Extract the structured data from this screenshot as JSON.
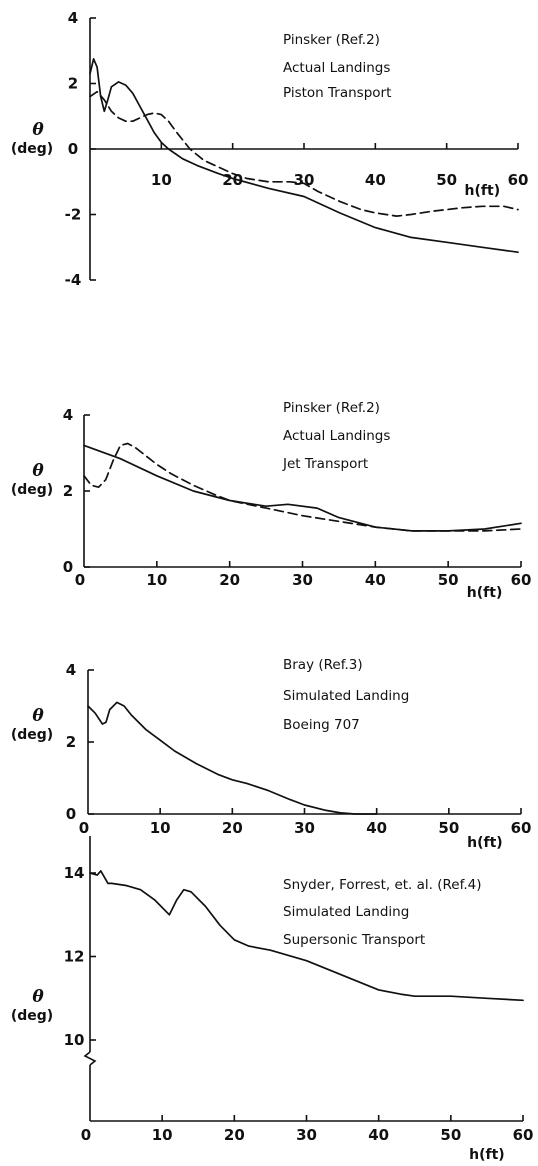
{
  "chart_data": [
    {
      "type": "line",
      "xlabel": "h(ft)",
      "ylabel": "θ",
      "ylabel_unit": "(deg)",
      "xlim": [
        0,
        60
      ],
      "ylim": [
        -4,
        4
      ],
      "x_ticks": [
        "10",
        "20",
        "30",
        "40",
        "50",
        "60"
      ],
      "y_ticks": [
        {
          "value": 4,
          "label": "4"
        },
        {
          "value": 2,
          "label": "2"
        },
        {
          "value": 0,
          "label": "0"
        },
        {
          "value": -2,
          "label": "-2"
        },
        {
          "value": -4,
          "label": "-4"
        }
      ],
      "annotations": [
        "Pinsker (Ref.2)",
        "Actual Landings",
        "Piston Transport"
      ],
      "series": [
        {
          "style": "solid",
          "x": [
            0,
            0.5,
            1,
            1.5,
            2,
            2.5,
            3,
            4,
            5,
            6,
            7,
            8,
            9,
            10,
            11,
            13,
            15,
            18,
            20,
            25,
            30,
            35,
            40,
            45,
            50,
            55,
            60
          ],
          "y": [
            2.3,
            2.75,
            2.5,
            1.6,
            1.15,
            1.5,
            1.9,
            2.05,
            1.95,
            1.7,
            1.3,
            0.9,
            0.5,
            0.2,
            0.0,
            -0.3,
            -0.5,
            -0.75,
            -0.9,
            -1.2,
            -1.45,
            -1.95,
            -2.4,
            -2.7,
            -2.85,
            -3.0,
            -3.15
          ]
        },
        {
          "style": "dashed",
          "x": [
            0,
            1,
            2,
            3,
            4,
            5,
            6,
            7,
            8,
            9,
            10,
            11,
            12,
            14,
            16,
            18,
            20,
            22,
            25,
            28,
            30,
            32,
            35,
            38,
            40,
            43,
            45,
            48,
            50,
            52,
            55,
            58,
            60
          ],
          "y": [
            1.6,
            1.75,
            1.5,
            1.15,
            0.95,
            0.85,
            0.85,
            0.95,
            1.05,
            1.1,
            1.05,
            0.85,
            0.55,
            0.0,
            -0.35,
            -0.55,
            -0.75,
            -0.9,
            -1.0,
            -1.0,
            -1.05,
            -1.3,
            -1.6,
            -1.85,
            -1.95,
            -2.05,
            -2.0,
            -1.9,
            -1.85,
            -1.8,
            -1.75,
            -1.75,
            -1.85
          ]
        }
      ]
    },
    {
      "type": "line",
      "xlabel": "h(ft)",
      "ylabel": "θ",
      "ylabel_unit": "(deg)",
      "xlim": [
        0,
        60
      ],
      "ylim": [
        0,
        4
      ],
      "x_ticks": [
        "0",
        "10",
        "20",
        "30",
        "40",
        "50",
        "60"
      ],
      "y_ticks": [
        {
          "value": 4,
          "label": "4"
        },
        {
          "value": 2,
          "label": "2"
        },
        {
          "value": 0,
          "label": "0"
        }
      ],
      "annotations": [
        "Pinsker (Ref.2)",
        "Actual Landings",
        "Jet Transport"
      ],
      "series": [
        {
          "style": "solid",
          "x": [
            0,
            5,
            10,
            15,
            20,
            25,
            28,
            32,
            35,
            40,
            45,
            50,
            55,
            60
          ],
          "y": [
            3.2,
            2.85,
            2.4,
            2.0,
            1.75,
            1.6,
            1.65,
            1.55,
            1.3,
            1.05,
            0.95,
            0.95,
            1.0,
            1.15
          ]
        },
        {
          "style": "dashed",
          "x": [
            0,
            1,
            2,
            3,
            4,
            5,
            6,
            7,
            8,
            10,
            12,
            15,
            18,
            20,
            25,
            30,
            35,
            40,
            45,
            50,
            55,
            60
          ],
          "y": [
            2.4,
            2.15,
            2.1,
            2.3,
            2.8,
            3.2,
            3.25,
            3.15,
            3.0,
            2.7,
            2.45,
            2.15,
            1.9,
            1.75,
            1.55,
            1.35,
            1.2,
            1.05,
            0.95,
            0.95,
            0.95,
            1.0
          ]
        }
      ]
    },
    {
      "type": "line",
      "xlabel": "h(ft)",
      "ylabel": "θ",
      "ylabel_unit": "(deg)",
      "xlim": [
        0,
        60
      ],
      "ylim": [
        0,
        4
      ],
      "x_ticks": [
        "0",
        "10",
        "20",
        "30",
        "40",
        "50",
        "60"
      ],
      "y_ticks": [
        {
          "value": 4,
          "label": "4"
        },
        {
          "value": 2,
          "label": "2"
        },
        {
          "value": 0,
          "label": "0"
        }
      ],
      "annotations": [
        "Bray (Ref.3)",
        "Simulated Landing",
        "Boeing 707"
      ],
      "series": [
        {
          "style": "solid",
          "x": [
            0,
            1,
            2,
            2.5,
            3,
            4,
            5,
            6,
            8,
            10,
            12,
            15,
            18,
            20,
            22,
            25,
            28,
            30,
            33,
            35,
            37,
            40
          ],
          "y": [
            3.0,
            2.8,
            2.5,
            2.55,
            2.9,
            3.1,
            3.0,
            2.75,
            2.35,
            2.05,
            1.75,
            1.4,
            1.1,
            0.95,
            0.85,
            0.65,
            0.4,
            0.25,
            0.1,
            0.03,
            0.0,
            0.0
          ]
        }
      ]
    },
    {
      "type": "line",
      "xlabel": "h(ft)",
      "ylabel": "θ",
      "ylabel_unit": "(deg)",
      "xlim": [
        0,
        60
      ],
      "ylim": [
        9,
        14.5
      ],
      "axis_break": true,
      "x_ticks": [
        "0",
        "10",
        "20",
        "30",
        "40",
        "50",
        "60"
      ],
      "y_ticks": [
        {
          "value": 14,
          "label": "14"
        },
        {
          "value": 12,
          "label": "12"
        },
        {
          "value": 10,
          "label": "10"
        }
      ],
      "annotations": [
        "Snyder, Forrest, et. al. (Ref.4)",
        "Simulated Landing",
        "Supersonic Transport"
      ],
      "series": [
        {
          "style": "solid",
          "x": [
            0,
            1,
            1.5,
            2,
            2.5,
            3,
            5,
            7,
            9,
            11,
            12,
            13,
            14,
            16,
            18,
            20,
            22,
            25,
            30,
            35,
            40,
            43,
            45,
            50,
            55,
            60
          ],
          "y": [
            14.0,
            13.95,
            14.05,
            13.9,
            13.75,
            13.75,
            13.7,
            13.6,
            13.35,
            13.0,
            13.35,
            13.6,
            13.55,
            13.2,
            12.75,
            12.4,
            12.25,
            12.15,
            11.9,
            11.55,
            11.2,
            11.1,
            11.05,
            11.05,
            11.0,
            10.95
          ]
        }
      ]
    }
  ]
}
